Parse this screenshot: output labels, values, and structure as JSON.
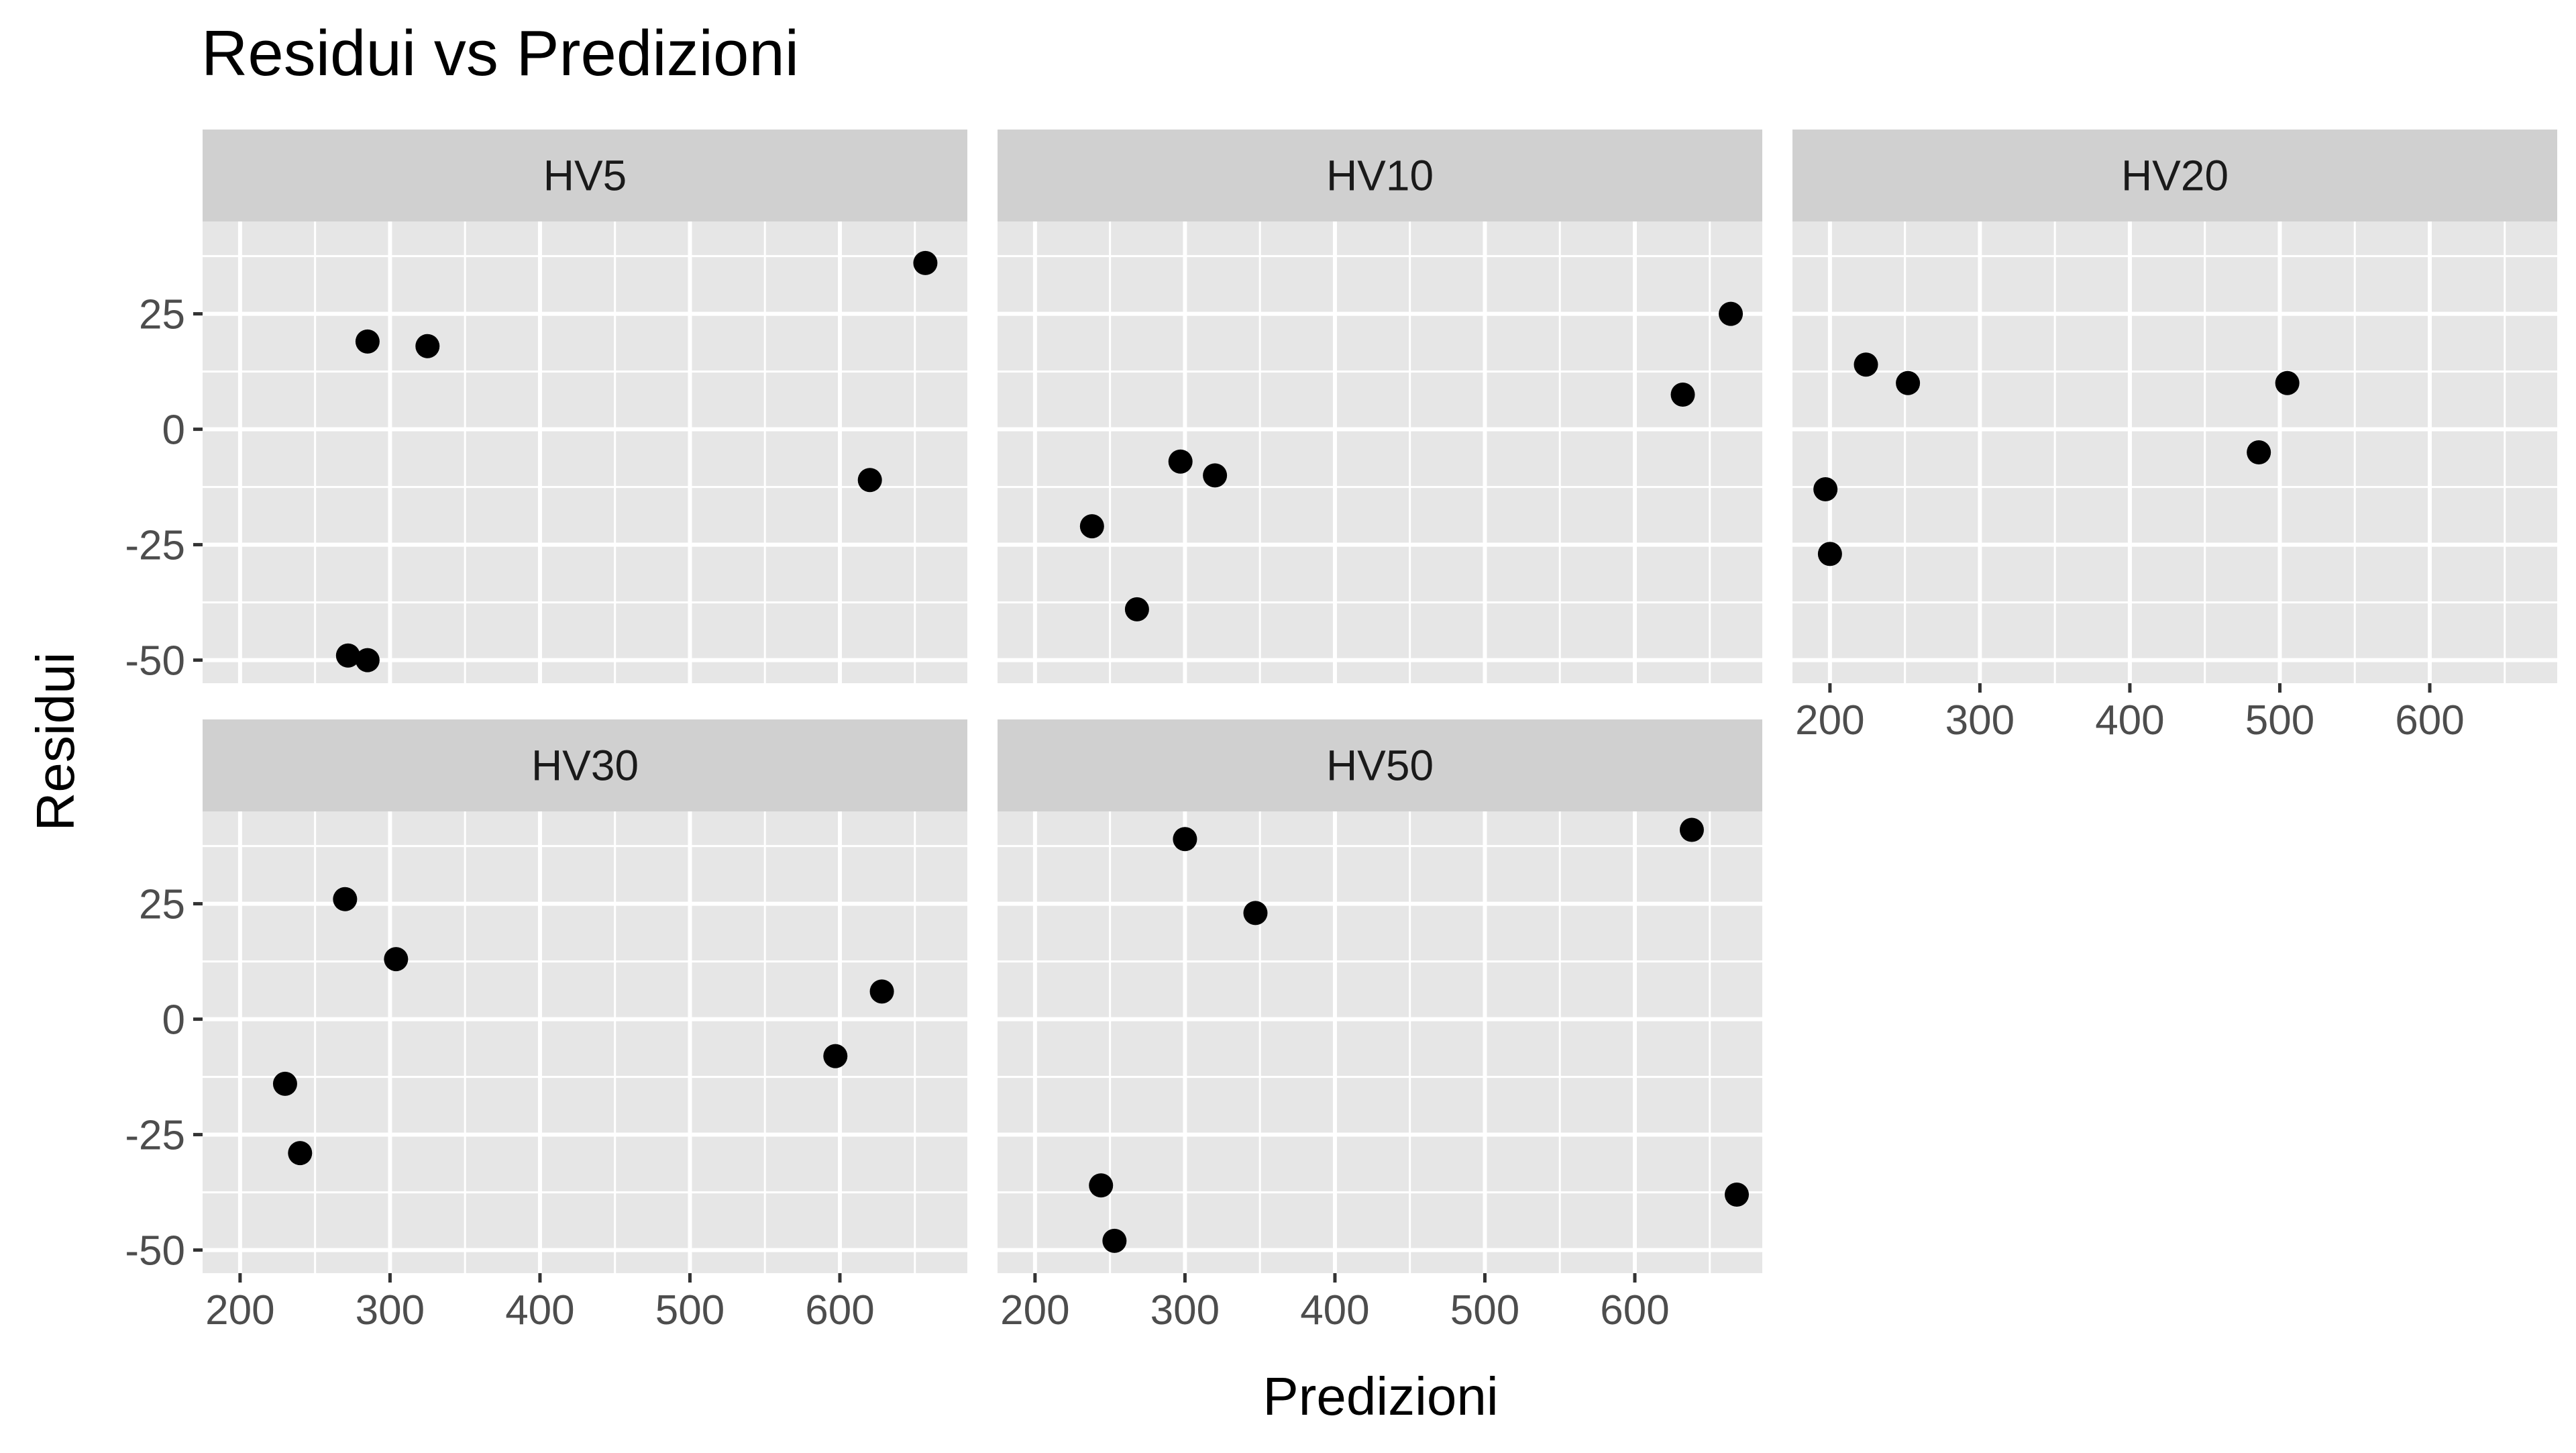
{
  "chart_data": {
    "type": "scatter",
    "title": "Residui vs Predizioni",
    "xlabel": "Predizioni",
    "ylabel": "Residui",
    "xlim": [
      175,
      685
    ],
    "ylim": [
      -55,
      45
    ],
    "x_ticks": [
      200,
      300,
      400,
      500,
      600
    ],
    "y_ticks": [
      -50,
      -25,
      0,
      25
    ],
    "grid": true,
    "colors": {
      "panel_bg": "#e6e6e6",
      "strip_bg": "#d0d0d0",
      "grid": "#ffffff",
      "point": "#000000",
      "text": "#000000",
      "tick_text": "#4d4d4d"
    },
    "facets": [
      {
        "name": "HV5",
        "x": [
          285,
          325,
          272,
          285,
          620,
          657
        ],
        "y": [
          19,
          18,
          -49,
          -50,
          -11,
          36
        ]
      },
      {
        "name": "HV10",
        "x": [
          297,
          320,
          238,
          268,
          632,
          664
        ],
        "y": [
          -7,
          -10,
          -21,
          -39,
          7.5,
          25
        ]
      },
      {
        "name": "HV20",
        "x": [
          224,
          252,
          197,
          200,
          486,
          505
        ],
        "y": [
          14,
          10,
          -13,
          -27,
          -5,
          10
        ]
      },
      {
        "name": "HV30",
        "x": [
          270,
          304,
          230,
          240,
          597,
          628
        ],
        "y": [
          26,
          13,
          -14,
          -29,
          -8,
          6
        ]
      },
      {
        "name": "HV50",
        "x": [
          300,
          347,
          244,
          253,
          638,
          668
        ],
        "y": [
          39,
          23,
          -36,
          -48,
          41,
          -38
        ]
      }
    ]
  }
}
